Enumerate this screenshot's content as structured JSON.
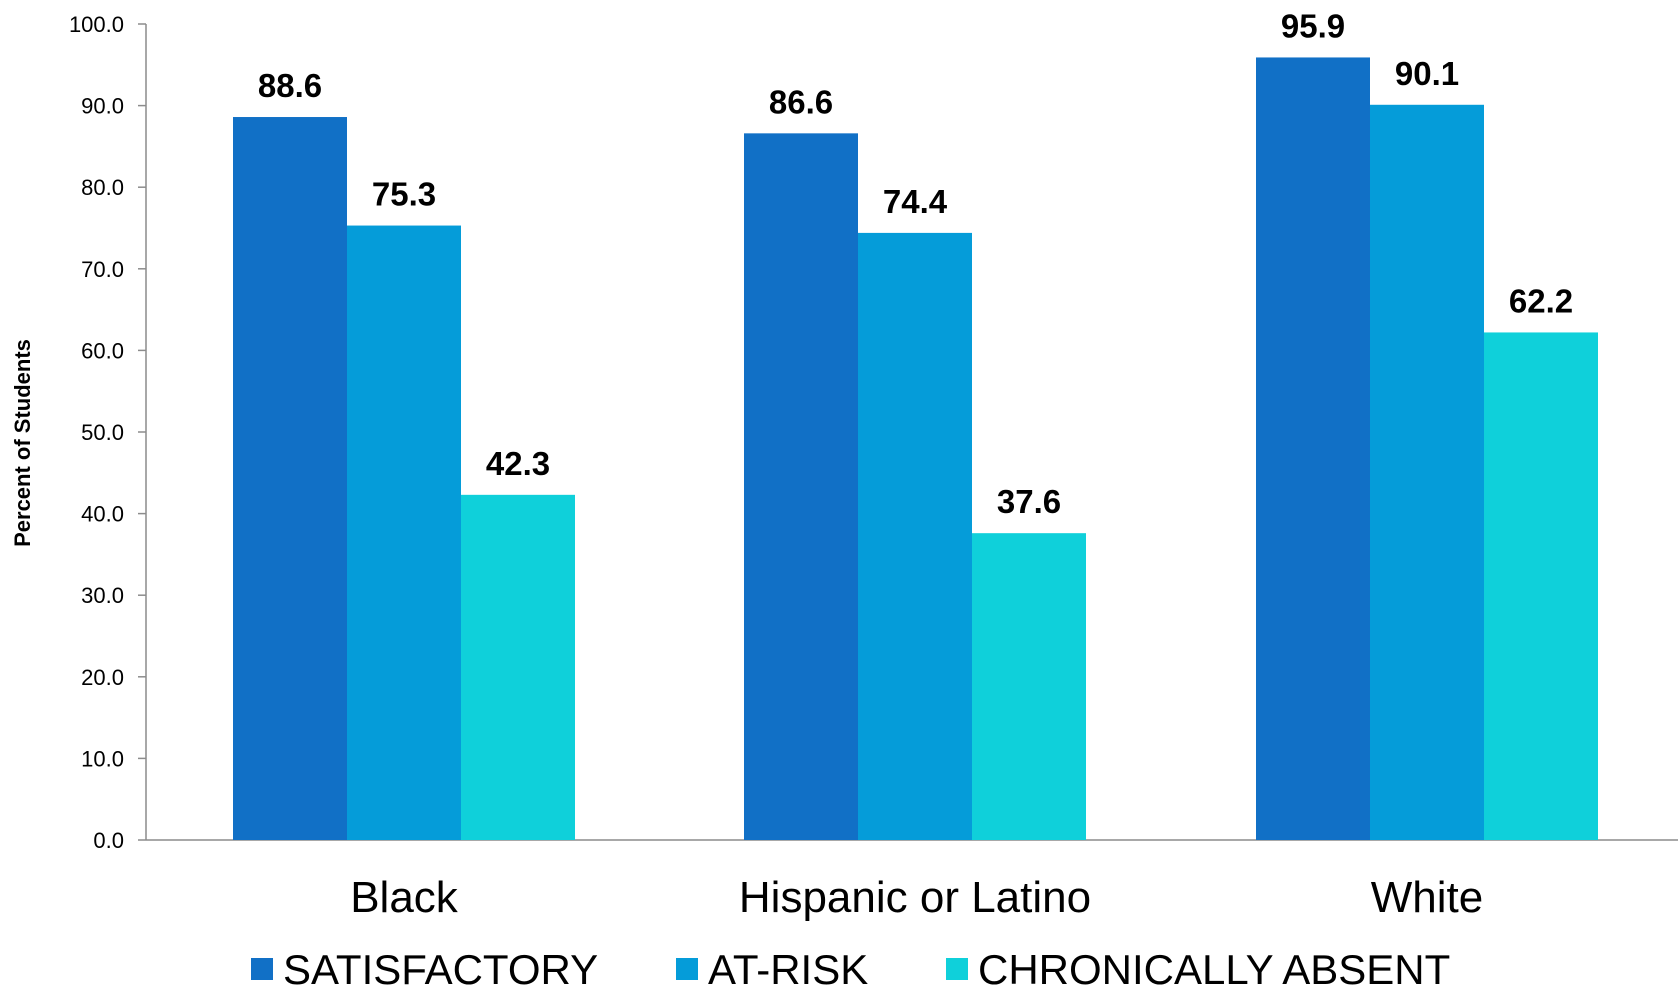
{
  "chart_data": {
    "type": "bar",
    "title": "",
    "xlabel": "",
    "ylabel": "Percent of Students",
    "ylim": [
      0,
      100
    ],
    "yticks": [
      "0.0",
      "10.0",
      "20.0",
      "30.0",
      "40.0",
      "50.0",
      "60.0",
      "70.0",
      "80.0",
      "90.0",
      "100.0"
    ],
    "categories": [
      "Black",
      "Hispanic or Latino",
      "White"
    ],
    "series": [
      {
        "name": "SATISFACTORY",
        "color": "#1170c6",
        "values": [
          88.6,
          86.6,
          95.9
        ],
        "labels": [
          "88.6",
          "86.6",
          "95.9"
        ]
      },
      {
        "name": "AT-RISK",
        "color": "#059cd9",
        "values": [
          75.3,
          74.4,
          90.1
        ],
        "labels": [
          "75.3",
          "74.4",
          "90.1"
        ]
      },
      {
        "name": "CHRONICALLY ABSENT",
        "color": "#0fd0da",
        "values": [
          42.3,
          37.6,
          62.2
        ],
        "labels": [
          "42.3",
          "37.6",
          "62.2"
        ]
      }
    ],
    "legend_position": "bottom",
    "grid": false
  }
}
